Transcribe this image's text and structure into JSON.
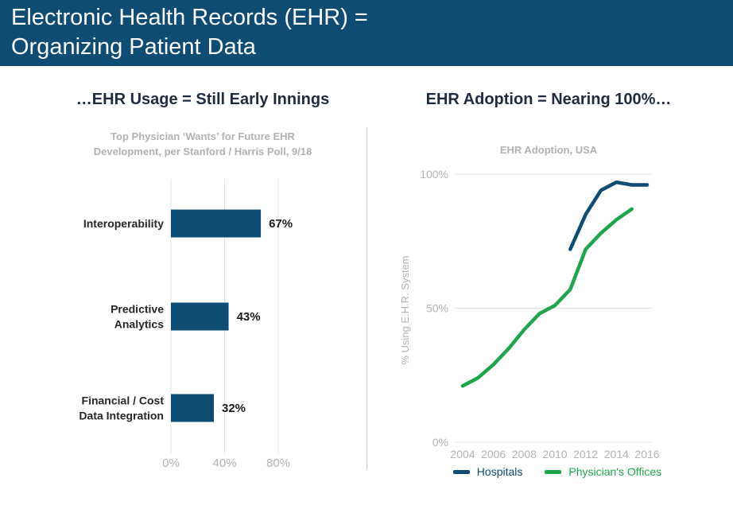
{
  "header": {
    "title_line1": "Electronic Health Records (EHR) =",
    "title_line2": "Organizing Patient Data"
  },
  "left_panel": {
    "title": "…EHR Usage = Still Early Innings",
    "subtitle_line1": "Top Physician ‘Wants’ for Future EHR",
    "subtitle_line2": "Development, per Stanford / Harris Poll, 9/18"
  },
  "right_panel": {
    "title": "EHR Adoption = Nearing 100%…",
    "subtitle": "EHR Adoption, USA"
  },
  "colors": {
    "navy": "#0E4C74",
    "green": "#1FA44E",
    "header_bg": "#0E4C74",
    "title_text": "#1F2B40",
    "muted_gray": "#B3B3B3",
    "grid_gray": "#E3E3E3",
    "category_text": "#26272B",
    "value_text": "#1B1B1B"
  },
  "chart_data": [
    {
      "type": "bar",
      "orientation": "horizontal",
      "title": "Top Physician ‘Wants’ for Future EHR Development, per Stanford / Harris Poll, 9/18",
      "categories": [
        "Interoperability",
        "Predictive\nAnalytics",
        "Financial / Cost\nData Integration"
      ],
      "values": [
        67,
        43,
        32
      ],
      "value_labels": [
        "67%",
        "43%",
        "32%"
      ],
      "xlim": [
        0,
        80
      ],
      "x_ticks": [
        {
          "value": 0,
          "label": "0%"
        },
        {
          "value": 40,
          "label": "40%"
        },
        {
          "value": 80,
          "label": "80%"
        }
      ],
      "bar_color": "#0E4C74",
      "grid": true
    },
    {
      "type": "line",
      "title": "EHR Adoption, USA",
      "ylabel": "% Using E.H.R. System",
      "xlim": [
        2003.5,
        2016.3
      ],
      "ylim": [
        0,
        100
      ],
      "grid": true,
      "legend_position": "bottom",
      "x_ticks": [
        {
          "value": 2004,
          "label": "2004"
        },
        {
          "value": 2006,
          "label": "2006"
        },
        {
          "value": 2008,
          "label": "2008"
        },
        {
          "value": 2010,
          "label": "2010"
        },
        {
          "value": 2012,
          "label": "2012"
        },
        {
          "value": 2014,
          "label": "2014"
        },
        {
          "value": 2016,
          "label": "2016"
        }
      ],
      "y_ticks": [
        {
          "value": 100,
          "label": "100%"
        },
        {
          "value": 50,
          "label": "50%"
        },
        {
          "value": 0,
          "label": "0%"
        }
      ],
      "series": [
        {
          "name": "Hospitals",
          "color": "#0E4C74",
          "x": [
            2011,
            2012,
            2013,
            2014,
            2015,
            2016
          ],
          "values": [
            72,
            85,
            94,
            97,
            96,
            96
          ]
        },
        {
          "name": "Physician's Offices",
          "color": "#1FA44E",
          "x": [
            2004,
            2005,
            2006,
            2007,
            2008,
            2009,
            2010,
            2011,
            2012,
            2013,
            2014,
            2015
          ],
          "values": [
            21,
            24,
            29,
            35,
            42,
            48,
            51,
            57,
            72,
            78,
            83,
            87
          ]
        }
      ]
    }
  ]
}
